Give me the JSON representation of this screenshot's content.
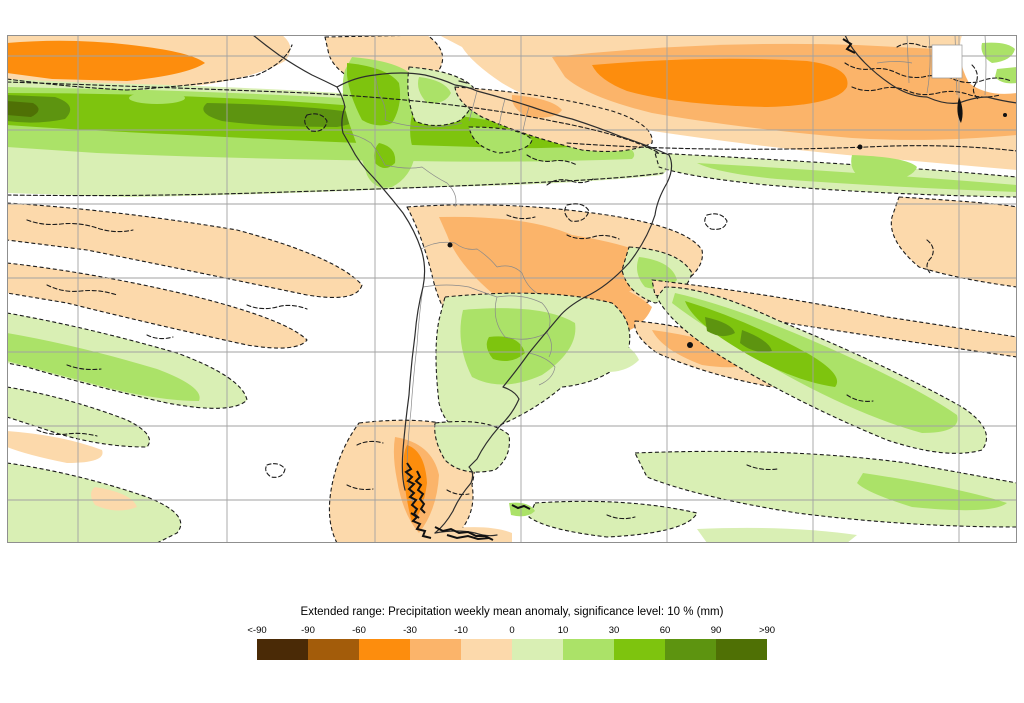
{
  "legend": {
    "title": "Extended range: Precipitation weekly mean anomaly, significance level: 10 % (mm)",
    "tick_labels": [
      "<-90",
      "-90",
      "-60",
      "-30",
      "-10",
      "0",
      "10",
      "30",
      "60",
      "90",
      ">90"
    ],
    "colors": [
      "#4a2a06",
      "#a35c0a",
      "#fd8d0d",
      "#fbb46a",
      "#fcd9ab",
      "#d9efb4",
      "#abe268",
      "#7ec40e",
      "#5d9410",
      "#4f7005"
    ],
    "unit": "mm"
  },
  "map": {
    "description": "precipitation-anomaly-filled-contour-map-south-america-atlantic-west-africa",
    "colors": {
      "background": "#ffffff",
      "gridline": "#a2a2a2",
      "coastline": "#2e2e2e",
      "country_border": "#8a8a8a",
      "significance_contour": "#1c1c1c"
    }
  }
}
